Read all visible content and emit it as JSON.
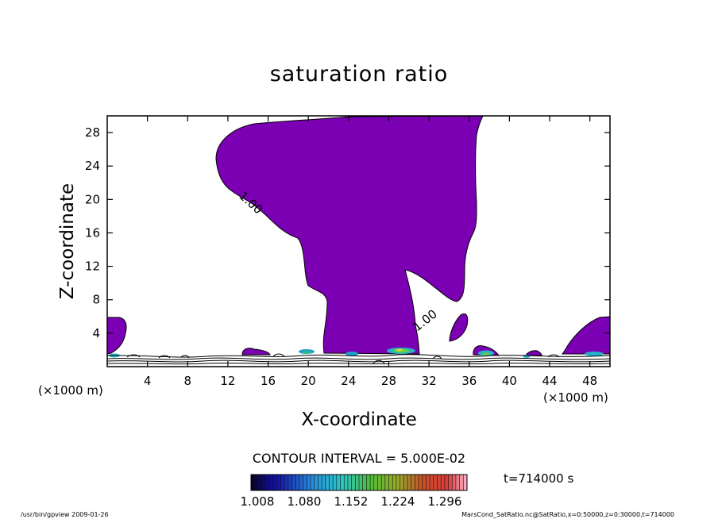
{
  "chart_data": {
    "type": "contour",
    "title": "saturation ratio",
    "xlabel": "X-coordinate",
    "ylabel": "Z-coordinate",
    "x_unit_label": "(×1000 m)",
    "z_unit_label": "(×1000 m)",
    "xlim": [
      0,
      50
    ],
    "ylim": [
      0,
      30
    ],
    "x_ticks": [
      4,
      8,
      12,
      16,
      20,
      24,
      28,
      32,
      36,
      40,
      44,
      48
    ],
    "y_ticks": [
      4,
      8,
      12,
      16,
      20,
      24,
      28
    ],
    "contour_labels": [
      "1.00",
      "1.00"
    ],
    "contour_interval_text": "CONTOUR INTERVAL = 5.000E-02",
    "time_label": "t=714000 s",
    "colorbar": {
      "min": 1.008,
      "max": 1.296,
      "tick_labels": [
        "1.008",
        "1.080",
        "1.152",
        "1.224",
        "1.296"
      ]
    },
    "fill_color": "#7b00b4",
    "footer_left": "/usr/bin/gpview  2009-01-26",
    "footer_right": "MarsCond_SatRatio.nc@SatRatio,x=0:50000,z=0:30000,t=714000"
  }
}
